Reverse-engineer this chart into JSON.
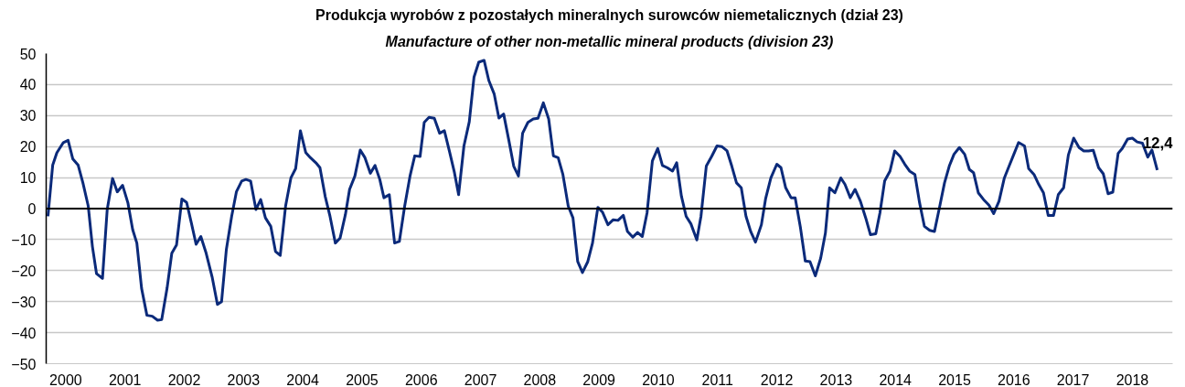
{
  "chart_data": {
    "type": "line",
    "title": "Produkcja wyrobów z pozostałych mineralnych surowców niemetalicznych (dział 23)",
    "subtitle": "Manufacture of other non-metallic mineral products (division 23)",
    "xlim": [
      1999.97,
      2018.98
    ],
    "xticks": [
      {
        "value": 2000.3,
        "label": "2000"
      },
      {
        "value": 2001.3,
        "label": "2001"
      },
      {
        "value": 2002.3,
        "label": "2002"
      },
      {
        "value": 2003.3,
        "label": "2003"
      },
      {
        "value": 2004.3,
        "label": "2004"
      },
      {
        "value": 2005.3,
        "label": "2005"
      },
      {
        "value": 2006.3,
        "label": "2006"
      },
      {
        "value": 2007.3,
        "label": "2007"
      },
      {
        "value": 2008.3,
        "label": "2008"
      },
      {
        "value": 2009.3,
        "label": "2009"
      },
      {
        "value": 2010.3,
        "label": "2010"
      },
      {
        "value": 2011.3,
        "label": "2011"
      },
      {
        "value": 2012.3,
        "label": "2012"
      },
      {
        "value": 2013.3,
        "label": "2013"
      },
      {
        "value": 2014.3,
        "label": "2014"
      },
      {
        "value": 2015.3,
        "label": "2015"
      },
      {
        "value": 2016.3,
        "label": "2016"
      },
      {
        "value": 2017.3,
        "label": "2017"
      },
      {
        "value": 2018.3,
        "label": "2018"
      }
    ],
    "ylim": [
      -50,
      50
    ],
    "yticks": [
      -50,
      -40,
      -30,
      -20,
      -10,
      0,
      10,
      20,
      30,
      40,
      50
    ],
    "grid": "y",
    "line_style": "solid",
    "marker": "none",
    "ref_lines": [
      {
        "axis": "y",
        "value": 0,
        "color": "#000000"
      }
    ],
    "annotations": [
      {
        "text": "12,4",
        "x": 2018.72,
        "y": 12.4
      }
    ],
    "series": [
      {
        "color": "#0b2a7a",
        "x": [
          2000.0,
          2000.08,
          2000.15,
          2000.26,
          2000.34,
          2000.42,
          2000.51,
          2000.59,
          2000.68,
          2000.75,
          2000.82,
          2000.92,
          2001.0,
          2001.09,
          2001.17,
          2001.26,
          2001.35,
          2001.43,
          2001.5,
          2001.58,
          2001.67,
          2001.76,
          2001.85,
          2001.92,
          2002.01,
          2002.09,
          2002.17,
          2002.26,
          2002.34,
          2002.42,
          2002.5,
          2002.58,
          2002.67,
          2002.77,
          2002.86,
          2002.93,
          2003.01,
          2003.1,
          2003.18,
          2003.27,
          2003.34,
          2003.42,
          2003.51,
          2003.59,
          2003.67,
          2003.76,
          2003.84,
          2003.92,
          2004.01,
          2004.1,
          2004.18,
          2004.26,
          2004.35,
          2004.43,
          2004.52,
          2004.59,
          2004.68,
          2004.76,
          2004.85,
          2004.93,
          2005.02,
          2005.09,
          2005.18,
          2005.27,
          2005.35,
          2005.44,
          2005.52,
          2005.6,
          2005.67,
          2005.76,
          2005.85,
          2005.93,
          2006.02,
          2006.11,
          2006.19,
          2006.28,
          2006.35,
          2006.43,
          2006.52,
          2006.61,
          2006.69,
          2006.78,
          2006.86,
          2006.93,
          2007.02,
          2007.11,
          2007.19,
          2007.27,
          2007.36,
          2007.44,
          2007.53,
          2007.61,
          2007.69,
          2007.78,
          2007.86,
          2007.94,
          2008.01,
          2008.1,
          2008.19,
          2008.27,
          2008.36,
          2008.45,
          2008.53,
          2008.61,
          2008.69,
          2008.78,
          2008.86,
          2008.94,
          2009.02,
          2009.11,
          2009.19,
          2009.28,
          2009.36,
          2009.45,
          2009.54,
          2009.62,
          2009.71,
          2009.78,
          2009.87,
          2009.95,
          2010.03,
          2010.11,
          2010.2,
          2010.29,
          2010.37,
          2010.45,
          2010.54,
          2010.61,
          2010.69,
          2010.77,
          2010.85,
          2010.95,
          2011.02,
          2011.11,
          2011.2,
          2011.29,
          2011.37,
          2011.46,
          2011.54,
          2011.62,
          2011.7,
          2011.78,
          2011.86,
          2011.94,
          2012.04,
          2012.11,
          2012.2,
          2012.3,
          2012.37,
          2012.45,
          2012.54,
          2012.61,
          2012.7,
          2012.78,
          2012.86,
          2012.95,
          2013.04,
          2013.12,
          2013.19,
          2013.28,
          2013.38,
          2013.45,
          2013.54,
          2013.62,
          2013.71,
          2013.8,
          2013.88,
          2013.97,
          2014.04,
          2014.12,
          2014.21,
          2014.29,
          2014.38,
          2014.46,
          2014.54,
          2014.63,
          2014.71,
          2014.79,
          2014.88,
          2014.96,
          2015.05,
          2015.13,
          2015.21,
          2015.29,
          2015.38,
          2015.47,
          2015.55,
          2015.62,
          2015.7,
          2015.79,
          2015.88,
          2015.96,
          2016.05,
          2016.14,
          2016.22,
          2016.3,
          2016.38,
          2016.48,
          2016.55,
          2016.64,
          2016.72,
          2016.8,
          2016.88,
          2016.97,
          2017.05,
          2017.14,
          2017.22,
          2017.31,
          2017.4,
          2017.48,
          2017.56,
          2017.64,
          2017.73,
          2017.81,
          2017.89,
          2017.97,
          2018.06,
          2018.13,
          2018.22,
          2018.3,
          2018.38,
          2018.47,
          2018.56,
          2018.63,
          2018.72
        ],
        "values": [
          -2.5,
          14,
          18,
          21.3,
          22,
          16,
          14,
          8.3,
          0.8,
          -12.2,
          -21,
          -22.5,
          -0.3,
          9.7,
          5.4,
          7.5,
          1.8,
          -6.8,
          -11.1,
          -25.7,
          -34.4,
          -34.7,
          -36,
          -35.8,
          -25.7,
          -14.4,
          -11.7,
          3.1,
          2,
          -4.6,
          -11.5,
          -9,
          -14.4,
          -22,
          -30.9,
          -30,
          -13.3,
          -2.5,
          5.4,
          8.9,
          9.4,
          8.9,
          -0.3,
          2.9,
          -3,
          -5.7,
          -13.8,
          -15.1,
          0.8,
          9.9,
          12.9,
          25.1,
          18.1,
          16.4,
          14.8,
          13.2,
          3.8,
          -2.5,
          -11.1,
          -9.5,
          -1.9,
          6.2,
          10.5,
          18.9,
          16.4,
          11.4,
          13.9,
          9.4,
          3.5,
          4.5,
          -11.1,
          -10.6,
          0.8,
          10.5,
          17,
          16.8,
          27.8,
          29.4,
          29.1,
          24.3,
          25.1,
          18.1,
          11.6,
          4.5,
          20.2,
          28,
          42.4,
          47.2,
          47.8,
          41.3,
          37,
          29.2,
          30.5,
          21.8,
          13.7,
          10.5,
          24.3,
          27.8,
          28.9,
          29.1,
          34.1,
          28.9,
          17,
          16.4,
          11,
          0.8,
          -3,
          -17.1,
          -20.6,
          -17.1,
          -11.1,
          0.4,
          -1.2,
          -5.2,
          -3.6,
          -3.8,
          -2.2,
          -7.4,
          -9.2,
          -7.7,
          -9,
          -1.4,
          15.4,
          19.4,
          13.9,
          13.2,
          12.1,
          14.8,
          4,
          -2.5,
          -4.9,
          -10.1,
          -2.5,
          13.7,
          16.8,
          20.2,
          20,
          18.6,
          13.7,
          8.3,
          6.7,
          -2.5,
          -7.4,
          -10.8,
          -5.2,
          3.1,
          9.9,
          14.3,
          13.2,
          6.7,
          3.5,
          3.5,
          -6.3,
          -16.9,
          -17.1,
          -21.7,
          -16,
          -7.9,
          6.7,
          5.1,
          9.9,
          7.8,
          3.5,
          6.2,
          2.4,
          -3,
          -8.4,
          -8.1,
          -1.4,
          8.9,
          12.1,
          18.6,
          16.8,
          14.3,
          12.1,
          11,
          1.8,
          -5.7,
          -7,
          -7.4,
          0.8,
          8.3,
          13.7,
          17.5,
          19.7,
          17.5,
          12.6,
          11.6,
          5.1,
          2.9,
          1.1,
          -1.6,
          2.4,
          9.9,
          13.7,
          17.5,
          21.3,
          20.2,
          12.9,
          11,
          7.8,
          5.1,
          -2.2,
          -2.2,
          4.5,
          6.7,
          17.3,
          22.7,
          19.7,
          18.6,
          18.6,
          18.8,
          13.2,
          11.2,
          4.8,
          5.3,
          17.8,
          19.4,
          22.4,
          22.7,
          21.5,
          21.1,
          16.6,
          18.9,
          12.4
        ]
      }
    ]
  }
}
